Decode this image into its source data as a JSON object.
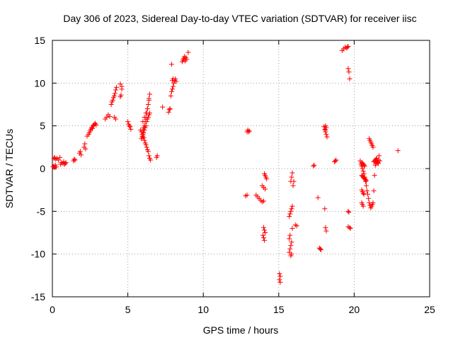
{
  "chart_data": {
    "type": "scatter",
    "title": "Day 306 of 2023, Sidereal Day-to-day VTEC variation (SDTVAR) for receiver iisc",
    "xlabel": "GPS time / hours",
    "ylabel": "SDTVAR / TECUs",
    "xlim": [
      0,
      25
    ],
    "ylim": [
      -15,
      15
    ],
    "xticks": [
      0,
      5,
      10,
      15,
      20,
      25
    ],
    "yticks": [
      -15,
      -10,
      -5,
      0,
      5,
      10,
      15
    ],
    "xtick_labels": [
      "0",
      "5",
      "10",
      "15",
      "20",
      "25"
    ],
    "ytick_labels": [
      "-15",
      "-10",
      "-5",
      "0",
      "5",
      "10",
      "15"
    ],
    "grid": true,
    "marker": "plus",
    "color": "#ff0000",
    "series": [
      {
        "name": "SDTVAR",
        "x": [
          0.05,
          0.1,
          0.15,
          0.2,
          0.25,
          0.1,
          0.15,
          0.2,
          0.3,
          0.4,
          0.5,
          0.55,
          0.6,
          0.7,
          0.75,
          0.8,
          0.85,
          0.9,
          1.4,
          1.45,
          1.5,
          1.8,
          1.85,
          1.9,
          2.1,
          2.15,
          2.2,
          2.3,
          2.4,
          2.45,
          2.5,
          2.55,
          2.6,
          2.65,
          2.7,
          2.75,
          2.8,
          2.85,
          2.9,
          3.5,
          3.6,
          3.7,
          3.8,
          3.9,
          3.95,
          4.0,
          4.05,
          4.1,
          4.15,
          4.2,
          4.25,
          4.1,
          4.2,
          4.5,
          4.55,
          4.6,
          4.5,
          4.6,
          5.0,
          5.05,
          5.1,
          5.15,
          5.2,
          5.85,
          5.9,
          5.95,
          6.0,
          6.05,
          6.1,
          6.15,
          6.2,
          6.25,
          6.3,
          6.35,
          6.4,
          6.45,
          6.5,
          5.9,
          5.95,
          6.0,
          6.05,
          6.1,
          6.15,
          6.2,
          6.25,
          6.3,
          6.35,
          6.4,
          6.45,
          6.0,
          6.05,
          6.1,
          6.15,
          6.2,
          6.25,
          6.3,
          6.35,
          6.4,
          6.0,
          6.1,
          6.2,
          6.3,
          6.4,
          6.45,
          6.9,
          6.95,
          7.3,
          7.7,
          7.75,
          7.8,
          7.85,
          7.9,
          7.95,
          8.0,
          8.05,
          8.1,
          8.15,
          8.2,
          7.9,
          7.95,
          8.0,
          8.6,
          8.65,
          8.7,
          8.75,
          8.8,
          8.85,
          8.9,
          9.0,
          8.8,
          12.9,
          12.95,
          13.0,
          13.05,
          12.8,
          12.9,
          13.5,
          13.6,
          13.7,
          13.8,
          13.9,
          14.0,
          14.05,
          14.1,
          14.15,
          14.2,
          13.9,
          14.0,
          14.1,
          14.0,
          14.05,
          14.1,
          13.95,
          14.0,
          14.05,
          15.05,
          15.1,
          15.05,
          15.1,
          15.7,
          15.75,
          15.8,
          15.85,
          15.9,
          15.95,
          15.8,
          15.85,
          15.9,
          15.7,
          15.75,
          15.8,
          15.85,
          15.7,
          15.75,
          15.8,
          15.85,
          15.9,
          16.0,
          16.1,
          16.2,
          17.3,
          17.35,
          17.6,
          17.7,
          17.75,
          17.8,
          18.0,
          18.05,
          18.1,
          18.15,
          18.2,
          18.05,
          18.1,
          18.15,
          18.1,
          18.15,
          18.1,
          18.7,
          18.75,
          18.8,
          19.2,
          19.3,
          19.4,
          19.5,
          19.55,
          19.6,
          19.65,
          19.7,
          19.6,
          19.65,
          19.6,
          19.7,
          19.75,
          19.6,
          20.4,
          20.45,
          20.5,
          20.55,
          20.6,
          20.65,
          20.7,
          20.75,
          20.8,
          20.85,
          20.9,
          20.95,
          21.0,
          21.05,
          21.1,
          21.15,
          21.2,
          21.25,
          21.3,
          21.35,
          21.4,
          21.45,
          21.5,
          21.55,
          21.6,
          20.5,
          20.55,
          20.6,
          20.65,
          20.7,
          20.5,
          20.55,
          20.6,
          20.65,
          20.5,
          20.55,
          20.6,
          20.5,
          20.55,
          20.6,
          20.65,
          20.7,
          20.75,
          20.8,
          21.0,
          21.05,
          21.1,
          21.15,
          21.2,
          21.25,
          21.3,
          21.35,
          21.4,
          21.45,
          21.5,
          21.6,
          21.65,
          21.7,
          22.9
        ],
        "y": [
          0.2,
          0.3,
          0.1,
          0.4,
          0.2,
          1.2,
          1.3,
          1.1,
          1.2,
          1.0,
          1.3,
          0.5,
          0.7,
          0.6,
          0.8,
          0.5,
          0.6,
          0.7,
          0.9,
          1.1,
          1.0,
          1.8,
          2.0,
          1.6,
          2.5,
          2.9,
          2.3,
          3.8,
          4.0,
          4.2,
          4.4,
          4.6,
          4.8,
          4.7,
          5.0,
          5.1,
          5.2,
          5.3,
          5.1,
          5.8,
          6.0,
          6.3,
          6.1,
          7.5,
          7.8,
          8.0,
          8.3,
          8.5,
          8.8,
          9.2,
          9.5,
          6.0,
          5.8,
          8.4,
          8.6,
          9.3,
          9.9,
          9.6,
          5.5,
          5.2,
          5.0,
          4.9,
          4.6,
          4.5,
          4.3,
          4.0,
          3.8,
          3.6,
          3.3,
          3.0,
          2.8,
          2.5,
          2.2,
          2.0,
          1.5,
          1.2,
          1.0,
          3.5,
          3.7,
          4.0,
          4.2,
          4.5,
          4.8,
          5.0,
          5.5,
          5.8,
          6.0,
          6.3,
          6.5,
          4.5,
          4.8,
          5.0,
          5.5,
          6.0,
          6.5,
          7.0,
          7.5,
          8.0,
          5.5,
          6.0,
          6.5,
          7.0,
          8.2,
          8.7,
          1.3,
          1.5,
          7.2,
          6.6,
          6.9,
          7.0,
          8.5,
          9.0,
          9.3,
          9.6,
          10.0,
          10.3,
          10.5,
          10.2,
          12.2,
          10.3,
          10.5,
          12.5,
          12.7,
          12.9,
          13.1,
          12.6,
          13.0,
          12.8,
          13.6,
          12.6,
          4.3,
          4.5,
          4.3,
          4.4,
          -3.2,
          -3.1,
          -3.1,
          -3.3,
          -3.5,
          -3.7,
          -3.9,
          -3.8,
          -0.6,
          -0.8,
          -1.0,
          -1.2,
          -2.0,
          -2.2,
          -2.4,
          -6.9,
          -7.2,
          -7.5,
          -7.8,
          -8.1,
          -8.4,
          -12.3,
          -12.6,
          -13.0,
          -13.3,
          -5.6,
          -5.3,
          -5.0,
          -4.7,
          -4.4,
          -2.0,
          -1.5,
          -1.0,
          -0.5,
          -9.8,
          -9.4,
          -9.0,
          -8.6,
          -8.2,
          -7.8,
          -10.2,
          -10.0,
          -7.0,
          -1.5,
          -6.6,
          -6.7,
          0.3,
          0.4,
          -3.4,
          -9.3,
          -9.4,
          -9.5,
          4.9,
          4.6,
          4.3,
          4.0,
          3.7,
          -4.7,
          -6.9,
          -7.3,
          4.5,
          4.8,
          5.0,
          0.8,
          0.9,
          1.0,
          13.8,
          14.0,
          14.2,
          14.1,
          14.2,
          11.7,
          11.3,
          10.5,
          -5.0,
          -5.1,
          -6.8,
          -6.9,
          -7.0,
          14.3,
          0.9,
          0.5,
          0.3,
          0.0,
          -0.3,
          -0.6,
          -1.0,
          -1.5,
          -2.0,
          -2.6,
          -3.0,
          -3.5,
          -4.0,
          -4.3,
          -4.6,
          -4.4,
          -4.2,
          -4.0,
          -2.6,
          -0.8,
          0.4,
          0.6,
          0.8,
          0.7,
          0.6,
          0.7,
          0.6,
          0.5,
          0.4,
          0.3,
          -2.5,
          -2.7,
          -2.9,
          -3.0,
          -4.0,
          -4.2,
          -4.4,
          -0.8,
          -0.9,
          -1.0,
          -1.1,
          -1.2,
          -1.3,
          -1.4,
          3.5,
          3.3,
          3.1,
          2.9,
          2.7,
          2.5,
          0.8,
          0.9,
          1.0,
          1.1,
          1.2,
          1.0,
          1.5,
          0.9,
          2.1
        ]
      }
    ]
  }
}
